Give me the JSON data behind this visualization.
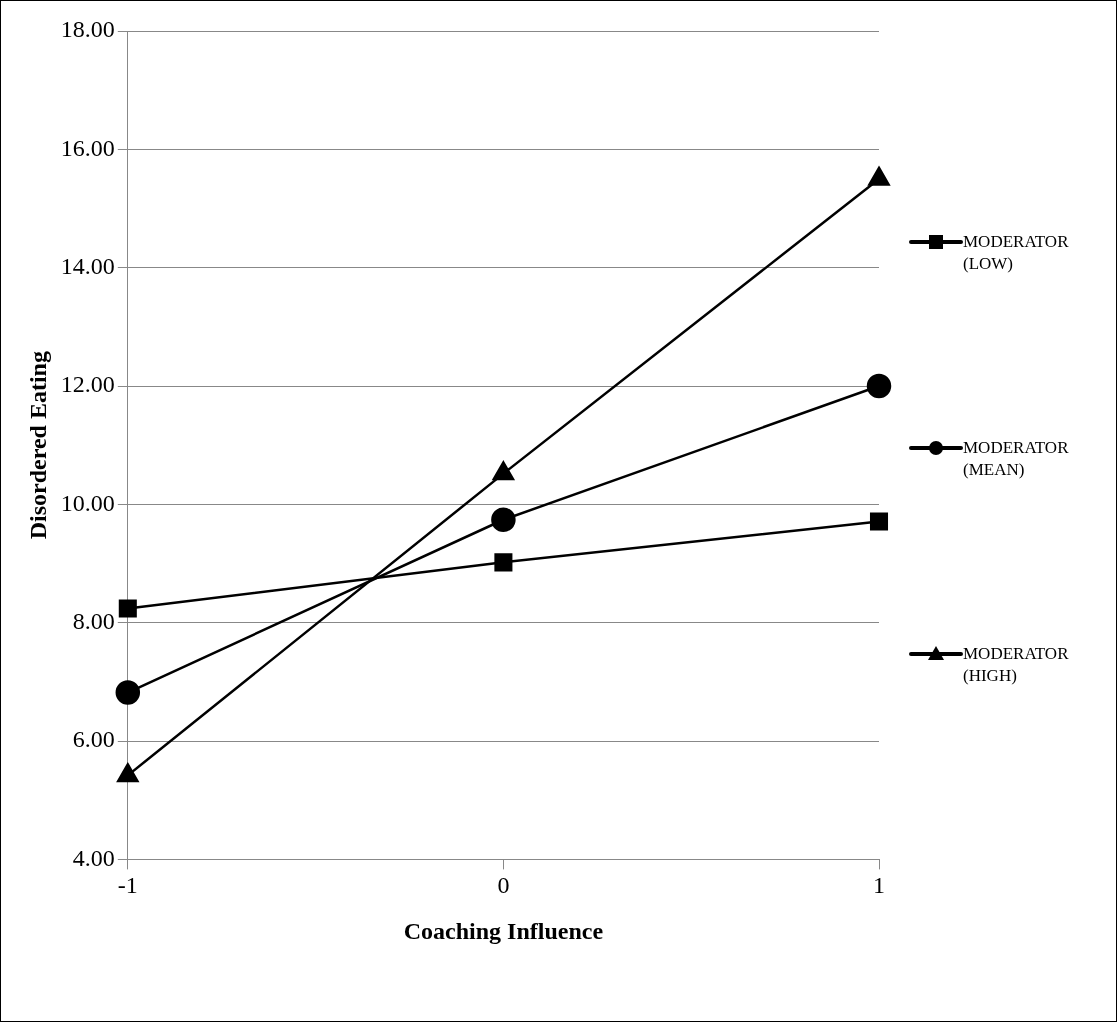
{
  "chart_data": {
    "type": "line",
    "xlabel": "Coaching Influence",
    "ylabel": "Disordered Eating",
    "x": [
      -1,
      0,
      1
    ],
    "xlim": [
      -1,
      1
    ],
    "xticks": [
      -1,
      0,
      1
    ],
    "ylim": [
      4,
      18
    ],
    "yticks": [
      {
        "value": 4,
        "label": "4.00"
      },
      {
        "value": 6,
        "label": "6.00"
      },
      {
        "value": 8,
        "label": "8.00"
      },
      {
        "value": 10,
        "label": "10.00"
      },
      {
        "value": 12,
        "label": "12.00"
      },
      {
        "value": 14,
        "label": "14.00"
      },
      {
        "value": 16,
        "label": "16.00"
      },
      {
        "value": 18,
        "label": "18.00"
      }
    ],
    "grid": "y",
    "legend": "right",
    "line_style": "solid",
    "series": [
      {
        "name": "MODERATOR (LOW)",
        "color": "#000000",
        "marker": "square",
        "values": [
          8.24,
          9.02,
          9.71
        ]
      },
      {
        "name": "MODERATOR (MEAN)",
        "color": "#000000",
        "marker": "circle",
        "values": [
          6.82,
          9.74,
          12.0
        ]
      },
      {
        "name": "MODERATOR (HIGH)",
        "color": "#000000",
        "marker": "triangle",
        "values": [
          5.42,
          10.52,
          15.5
        ]
      }
    ]
  }
}
